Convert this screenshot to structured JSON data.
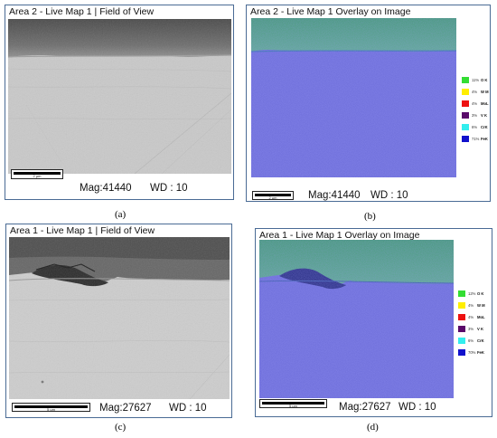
{
  "panels": {
    "a": {
      "title": "Area 2 - Live Map 1 | Field of View",
      "scale_label": "2 µm",
      "mag": "Mag:41440",
      "wd": "WD : 10",
      "caption": "(a)"
    },
    "b": {
      "title": "Area 2 - Live Map 1 Overlay on Image",
      "scale_label": "2 µm",
      "mag": "Mag:41440",
      "wd": "WD : 10",
      "caption": "(b)",
      "legend": [
        {
          "pct": "11%",
          "element": "O K",
          "color": "#33dd33"
        },
        {
          "pct": "4%",
          "element": "W M",
          "color": "#ffee00"
        },
        {
          "pct": "4%",
          "element": "MoL",
          "color": "#ee1111"
        },
        {
          "pct": "3%",
          "element": "V K",
          "color": "#5a0a6a"
        },
        {
          "pct": "6%",
          "element": "CrK",
          "color": "#33eeee"
        },
        {
          "pct": "71%",
          "element": "FeK",
          "color": "#1111cc"
        }
      ]
    },
    "c": {
      "title": "Area 1 - Live Map 1 | Field of View",
      "scale_label": "5 µm",
      "mag": "Mag:27627",
      "wd": "WD : 10",
      "caption": "(c)"
    },
    "d": {
      "title": "Area 1 - Live Map 1 Overlay on Image",
      "scale_label": "5 µm",
      "mag": "Mag:27627",
      "wd": "WD : 10",
      "caption": "(d)",
      "legend": [
        {
          "pct": "12%",
          "element": "O K",
          "color": "#33dd33"
        },
        {
          "pct": "4%",
          "element": "W M",
          "color": "#ffee00"
        },
        {
          "pct": "4%",
          "element": "MoL",
          "color": "#ee1111"
        },
        {
          "pct": "3%",
          "element": "V K",
          "color": "#5a0a6a"
        },
        {
          "pct": "6%",
          "element": "CrK",
          "color": "#33eeee"
        },
        {
          "pct": "70%",
          "element": "FeK",
          "color": "#1111cc"
        }
      ]
    }
  }
}
